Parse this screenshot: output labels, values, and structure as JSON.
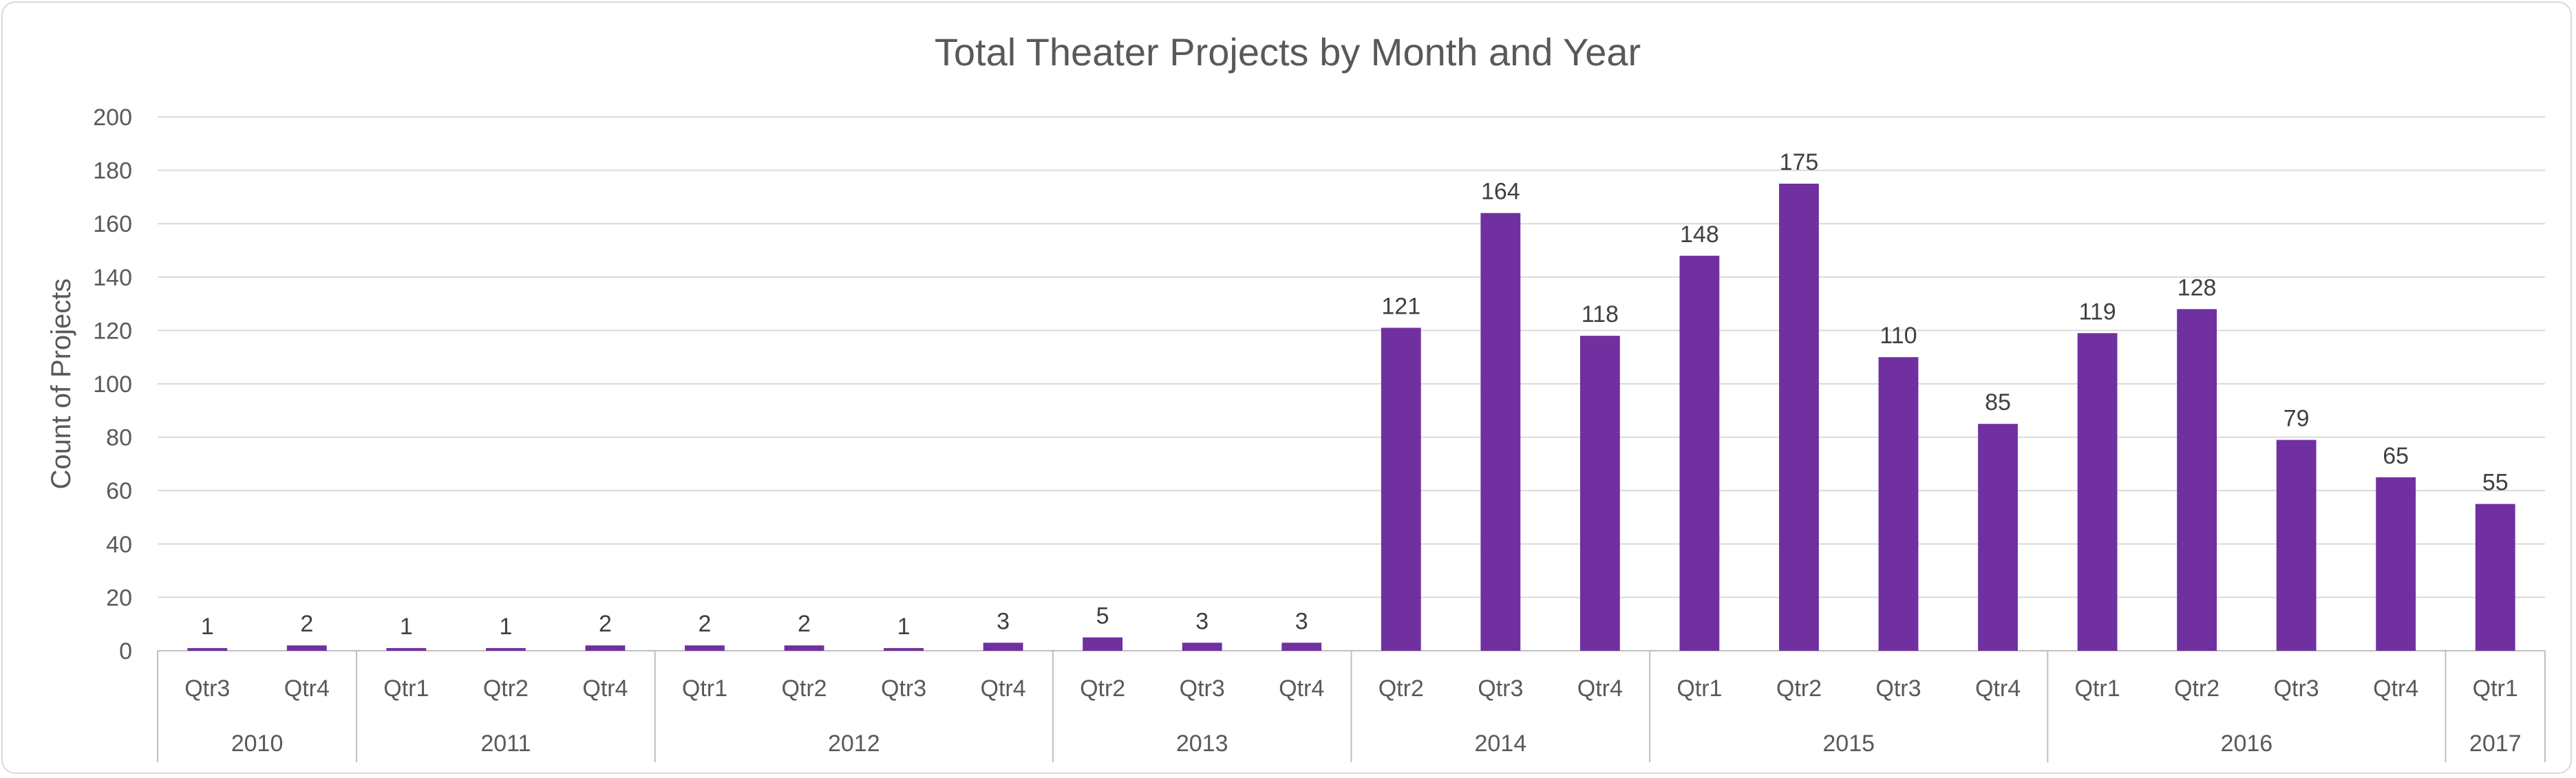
{
  "chart_data": {
    "type": "bar",
    "title": "Total Theater Projects by Month and Year",
    "xlabel": "",
    "ylabel": "Count of Projects",
    "ylim": [
      0,
      200
    ],
    "yticks": [
      0,
      20,
      40,
      60,
      80,
      100,
      120,
      140,
      160,
      180,
      200
    ],
    "grid": true,
    "legend": "none",
    "bar_color": "#7030a0",
    "categories": [
      {
        "year": "2010",
        "quarter": "Qtr3",
        "value": 1
      },
      {
        "year": "2010",
        "quarter": "Qtr4",
        "value": 2
      },
      {
        "year": "2011",
        "quarter": "Qtr1",
        "value": 1
      },
      {
        "year": "2011",
        "quarter": "Qtr2",
        "value": 1
      },
      {
        "year": "2011",
        "quarter": "Qtr4",
        "value": 2
      },
      {
        "year": "2012",
        "quarter": "Qtr1",
        "value": 2
      },
      {
        "year": "2012",
        "quarter": "Qtr2",
        "value": 2
      },
      {
        "year": "2012",
        "quarter": "Qtr3",
        "value": 1
      },
      {
        "year": "2012",
        "quarter": "Qtr4",
        "value": 3
      },
      {
        "year": "2013",
        "quarter": "Qtr2",
        "value": 5
      },
      {
        "year": "2013",
        "quarter": "Qtr3",
        "value": 3
      },
      {
        "year": "2013",
        "quarter": "Qtr4",
        "value": 3
      },
      {
        "year": "2014",
        "quarter": "Qtr2",
        "value": 121
      },
      {
        "year": "2014",
        "quarter": "Qtr3",
        "value": 164
      },
      {
        "year": "2014",
        "quarter": "Qtr4",
        "value": 118
      },
      {
        "year": "2015",
        "quarter": "Qtr1",
        "value": 148
      },
      {
        "year": "2015",
        "quarter": "Qtr2",
        "value": 175
      },
      {
        "year": "2015",
        "quarter": "Qtr3",
        "value": 110
      },
      {
        "year": "2015",
        "quarter": "Qtr4",
        "value": 85
      },
      {
        "year": "2016",
        "quarter": "Qtr1",
        "value": 119
      },
      {
        "year": "2016",
        "quarter": "Qtr2",
        "value": 128
      },
      {
        "year": "2016",
        "quarter": "Qtr3",
        "value": 79
      },
      {
        "year": "2016",
        "quarter": "Qtr4",
        "value": 65
      },
      {
        "year": "2017",
        "quarter": "Qtr1",
        "value": 55
      }
    ]
  }
}
